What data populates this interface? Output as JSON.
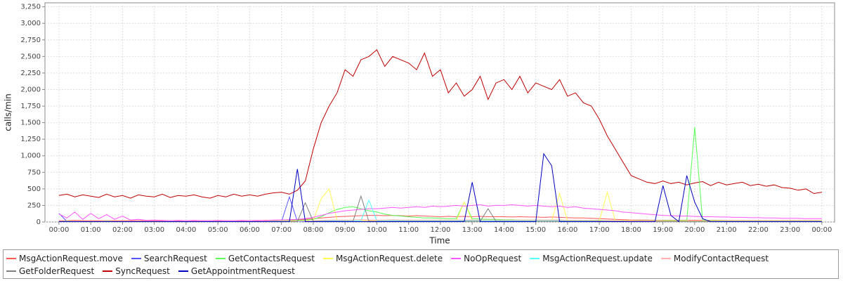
{
  "chart_data": {
    "type": "line",
    "y_label": "calls/min",
    "x_label": "Time",
    "x": [
      0,
      0.25,
      0.5,
      0.75,
      1,
      1.25,
      1.5,
      1.75,
      2,
      2.25,
      2.5,
      2.75,
      3,
      3.25,
      3.5,
      3.75,
      4,
      4.25,
      4.5,
      4.75,
      5,
      5.25,
      5.5,
      5.75,
      6,
      6.25,
      6.5,
      6.75,
      7,
      7.25,
      7.5,
      7.75,
      8,
      8.25,
      8.5,
      8.75,
      9,
      9.25,
      9.5,
      9.75,
      10,
      10.25,
      10.5,
      10.75,
      11,
      11.25,
      11.5,
      11.75,
      12,
      12.25,
      12.5,
      12.75,
      13,
      13.25,
      13.5,
      13.75,
      14,
      14.25,
      14.5,
      14.75,
      15,
      15.25,
      15.5,
      15.75,
      16,
      16.25,
      16.5,
      16.75,
      17,
      17.25,
      17.5,
      17.75,
      18,
      18.25,
      18.5,
      18.75,
      19,
      19.25,
      19.5,
      19.75,
      20,
      20.25,
      20.5,
      20.75,
      21,
      21.25,
      21.5,
      21.75,
      22,
      22.25,
      22.5,
      22.75,
      23,
      23.25,
      23.5,
      23.75,
      24
    ],
    "xlim": [
      -0.44,
      24.4
    ],
    "xticks": [
      {
        "value": 0,
        "label": "00:00"
      },
      {
        "value": 1,
        "label": "01:00"
      },
      {
        "value": 2,
        "label": "02:00"
      },
      {
        "value": 3,
        "label": "03:00"
      },
      {
        "value": 4,
        "label": "04:00"
      },
      {
        "value": 5,
        "label": "05:00"
      },
      {
        "value": 6,
        "label": "06:00"
      },
      {
        "value": 7,
        "label": "07:00"
      },
      {
        "value": 8,
        "label": "08:00"
      },
      {
        "value": 9,
        "label": "09:00"
      },
      {
        "value": 10,
        "label": "10:00"
      },
      {
        "value": 11,
        "label": "11:00"
      },
      {
        "value": 12,
        "label": "12:00"
      },
      {
        "value": 13,
        "label": "13:00"
      },
      {
        "value": 14,
        "label": "14:00"
      },
      {
        "value": 15,
        "label": "15:00"
      },
      {
        "value": 16,
        "label": "16:00"
      },
      {
        "value": 17,
        "label": "17:00"
      },
      {
        "value": 18,
        "label": "18:00"
      },
      {
        "value": 19,
        "label": "19:00"
      },
      {
        "value": 20,
        "label": "20:00"
      },
      {
        "value": 21,
        "label": "21:00"
      },
      {
        "value": 22,
        "label": "22:00"
      },
      {
        "value": 23,
        "label": "23:00"
      },
      {
        "value": 24,
        "label": "00:00"
      }
    ],
    "ylim": [
      0,
      3310
    ],
    "yticks": [
      0,
      250,
      500,
      750,
      {
        "value": 1000,
        "label": "1,000"
      },
      {
        "value": 1250,
        "label": "1,250"
      },
      {
        "value": 1500,
        "label": "1,500"
      },
      {
        "value": 1750,
        "label": "1,750"
      },
      {
        "value": 2000,
        "label": "2,000"
      },
      {
        "value": 2250,
        "label": "2,250"
      },
      {
        "value": 2500,
        "label": "2,500"
      },
      {
        "value": 2750,
        "label": "2,750"
      },
      {
        "value": 3000,
        "label": "3,000"
      },
      {
        "value": 3250,
        "label": "3,250"
      }
    ],
    "grid": true,
    "series": [
      {
        "name": "MsgActionRequest.move",
        "color": "#ff5555",
        "values": [
          20,
          20,
          25,
          20,
          20,
          20,
          20,
          20,
          20,
          20,
          20,
          20,
          20,
          20,
          20,
          20,
          20,
          20,
          20,
          20,
          20,
          20,
          20,
          20,
          20,
          20,
          25,
          25,
          30,
          30,
          35,
          40,
          50,
          60,
          70,
          80,
          85,
          90,
          95,
          100,
          100,
          95,
          100,
          95,
          90,
          95,
          90,
          85,
          80,
          85,
          80,
          85,
          80,
          85,
          80,
          80,
          80,
          75,
          80,
          75,
          75,
          70,
          75,
          70,
          65,
          60,
          60,
          55,
          50,
          45,
          40,
          35,
          30,
          30,
          30,
          25,
          25,
          25,
          25,
          25,
          25,
          25,
          25,
          25,
          20,
          20,
          20,
          20,
          20,
          20,
          20,
          20,
          20,
          20,
          20,
          20,
          20
        ]
      },
      {
        "name": "SearchRequest",
        "color": "#5555ff",
        "values": [
          130,
          10,
          5,
          5,
          5,
          5,
          5,
          5,
          5,
          5,
          5,
          5,
          5,
          5,
          5,
          5,
          5,
          5,
          5,
          5,
          5,
          5,
          5,
          5,
          5,
          5,
          5,
          5,
          5,
          380,
          10,
          5,
          10,
          10,
          15,
          15,
          20,
          20,
          20,
          20,
          20,
          20,
          20,
          20,
          20,
          20,
          20,
          20,
          20,
          20,
          20,
          20,
          20,
          20,
          20,
          20,
          20,
          20,
          20,
          20,
          20,
          20,
          20,
          20,
          15,
          15,
          15,
          15,
          15,
          10,
          10,
          10,
          10,
          10,
          10,
          10,
          10,
          10,
          10,
          10,
          10,
          10,
          10,
          10,
          5,
          5,
          5,
          5,
          5,
          5,
          5,
          5,
          5,
          5,
          5,
          5,
          5
        ]
      },
      {
        "name": "GetContactsRequest",
        "color": "#55ff55",
        "values": [
          10,
          15,
          10,
          10,
          10,
          10,
          15,
          10,
          10,
          10,
          10,
          10,
          10,
          10,
          10,
          10,
          10,
          10,
          10,
          10,
          10,
          10,
          10,
          10,
          10,
          10,
          15,
          15,
          20,
          20,
          25,
          30,
          40,
          80,
          140,
          190,
          220,
          230,
          200,
          170,
          150,
          120,
          100,
          90,
          80,
          70,
          60,
          60,
          55,
          50,
          50,
          300,
          50,
          45,
          40,
          40,
          35,
          35,
          30,
          30,
          30,
          30,
          30,
          30,
          25,
          25,
          25,
          25,
          25,
          20,
          20,
          20,
          20,
          20,
          20,
          20,
          20,
          20,
          20,
          20,
          1430,
          20,
          20,
          20,
          15,
          15,
          15,
          15,
          15,
          15,
          15,
          15,
          15,
          15,
          15,
          15,
          15
        ]
      },
      {
        "name": "MsgActionRequest.delete",
        "color": "#ffff55",
        "values": [
          10,
          10,
          10,
          10,
          10,
          10,
          10,
          10,
          10,
          10,
          10,
          10,
          10,
          10,
          10,
          10,
          10,
          10,
          10,
          10,
          10,
          10,
          10,
          10,
          10,
          10,
          10,
          10,
          15,
          15,
          15,
          20,
          20,
          350,
          500,
          30,
          20,
          20,
          20,
          20,
          20,
          20,
          20,
          20,
          20,
          20,
          20,
          20,
          20,
          20,
          20,
          300,
          20,
          20,
          20,
          20,
          20,
          20,
          20,
          20,
          20,
          20,
          20,
          430,
          20,
          20,
          20,
          20,
          20,
          450,
          20,
          20,
          20,
          15,
          15,
          15,
          15,
          15,
          15,
          15,
          15,
          15,
          15,
          15,
          10,
          10,
          10,
          10,
          10,
          10,
          10,
          10,
          10,
          10,
          10,
          10,
          10
        ]
      },
      {
        "name": "NoOpRequest",
        "color": "#ff55ff",
        "values": [
          120,
          60,
          150,
          40,
          130,
          50,
          110,
          40,
          90,
          30,
          40,
          25,
          30,
          25,
          20,
          25,
          20,
          25,
          20,
          20,
          25,
          20,
          20,
          25,
          20,
          25,
          20,
          30,
          30,
          35,
          40,
          50,
          70,
          100,
          130,
          150,
          170,
          180,
          190,
          200,
          200,
          210,
          220,
          210,
          220,
          230,
          220,
          240,
          230,
          240,
          250,
          240,
          250,
          260,
          240,
          250,
          250,
          260,
          250,
          240,
          250,
          240,
          230,
          240,
          220,
          230,
          210,
          200,
          190,
          180,
          170,
          150,
          140,
          130,
          120,
          110,
          100,
          95,
          90,
          90,
          85,
          80,
          80,
          75,
          75,
          70,
          70,
          65,
          65,
          60,
          60,
          55,
          55,
          55,
          50,
          50,
          50
        ]
      },
      {
        "name": "MsgActionRequest.update",
        "color": "#55ffff",
        "values": [
          10,
          10,
          10,
          10,
          10,
          10,
          10,
          10,
          10,
          10,
          10,
          10,
          10,
          10,
          10,
          10,
          10,
          10,
          10,
          10,
          10,
          10,
          10,
          10,
          10,
          10,
          10,
          10,
          10,
          10,
          10,
          15,
          15,
          20,
          20,
          20,
          20,
          20,
          20,
          330,
          20,
          20,
          20,
          20,
          20,
          20,
          20,
          20,
          20,
          20,
          20,
          20,
          20,
          20,
          20,
          20,
          20,
          20,
          20,
          20,
          20,
          20,
          20,
          20,
          15,
          15,
          15,
          15,
          15,
          15,
          15,
          15,
          10,
          10,
          10,
          10,
          10,
          10,
          10,
          10,
          10,
          10,
          10,
          10,
          10,
          10,
          10,
          10,
          10,
          10,
          10,
          10,
          10,
          10,
          10,
          10,
          10
        ]
      },
      {
        "name": "ModifyContactRequest",
        "color": "#ffafaf",
        "values": [
          10,
          10,
          10,
          10,
          10,
          10,
          10,
          10,
          10,
          10,
          10,
          10,
          10,
          10,
          10,
          10,
          10,
          10,
          10,
          10,
          10,
          10,
          10,
          10,
          10,
          10,
          10,
          10,
          10,
          10,
          15,
          15,
          20,
          25,
          30,
          30,
          30,
          30,
          35,
          30,
          30,
          30,
          35,
          30,
          30,
          30,
          30,
          30,
          30,
          30,
          30,
          30,
          30,
          30,
          30,
          30,
          30,
          30,
          30,
          30,
          30,
          30,
          30,
          30,
          25,
          25,
          25,
          25,
          20,
          20,
          20,
          15,
          15,
          15,
          15,
          15,
          10,
          10,
          10,
          10,
          10,
          10,
          10,
          10,
          10,
          10,
          10,
          10,
          10,
          10,
          10,
          10,
          10,
          10,
          10,
          10,
          10
        ]
      },
      {
        "name": "GetFolderRequest",
        "color": "#808080",
        "values": [
          5,
          5,
          5,
          5,
          5,
          5,
          5,
          5,
          5,
          5,
          5,
          5,
          5,
          5,
          5,
          5,
          5,
          5,
          5,
          5,
          5,
          5,
          5,
          5,
          5,
          5,
          5,
          5,
          5,
          5,
          5,
          290,
          10,
          10,
          10,
          10,
          10,
          10,
          390,
          10,
          10,
          10,
          10,
          10,
          10,
          10,
          10,
          10,
          10,
          10,
          10,
          10,
          10,
          10,
          200,
          10,
          10,
          10,
          10,
          10,
          10,
          10,
          10,
          10,
          10,
          10,
          10,
          10,
          10,
          10,
          10,
          10,
          5,
          5,
          5,
          5,
          5,
          5,
          5,
          5,
          5,
          5,
          5,
          5,
          5,
          5,
          5,
          5,
          5,
          5,
          5,
          5,
          5,
          5,
          5,
          5,
          5
        ]
      },
      {
        "name": "SyncRequest",
        "color": "#c00000",
        "values": [
          400,
          420,
          380,
          410,
          390,
          370,
          420,
          380,
          400,
          360,
          410,
          390,
          380,
          420,
          370,
          400,
          390,
          410,
          380,
          360,
          400,
          380,
          420,
          390,
          410,
          390,
          420,
          440,
          450,
          420,
          480,
          620,
          1100,
          1500,
          1750,
          1950,
          2300,
          2200,
          2450,
          2500,
          2600,
          2350,
          2500,
          2450,
          2400,
          2300,
          2550,
          2200,
          2300,
          1950,
          2100,
          1900,
          2000,
          2200,
          1850,
          2100,
          2150,
          2000,
          2200,
          1950,
          2100,
          2050,
          2000,
          2150,
          1900,
          1950,
          1800,
          1750,
          1550,
          1300,
          1100,
          900,
          700,
          650,
          600,
          580,
          620,
          580,
          600,
          560,
          590,
          610,
          550,
          600,
          560,
          580,
          600,
          550,
          570,
          540,
          560,
          520,
          510,
          480,
          500,
          430,
          450
        ]
      },
      {
        "name": "GetAppointmentRequest",
        "color": "#0000c0",
        "values": [
          5,
          5,
          5,
          5,
          5,
          5,
          5,
          5,
          5,
          5,
          5,
          5,
          5,
          5,
          5,
          5,
          5,
          5,
          5,
          5,
          5,
          5,
          5,
          5,
          5,
          5,
          5,
          5,
          5,
          5,
          800,
          5,
          5,
          5,
          5,
          5,
          5,
          5,
          5,
          5,
          5,
          5,
          5,
          5,
          5,
          5,
          5,
          5,
          5,
          5,
          5,
          5,
          600,
          5,
          5,
          5,
          5,
          5,
          5,
          5,
          5,
          1030,
          850,
          5,
          5,
          5,
          5,
          5,
          5,
          5,
          5,
          5,
          5,
          5,
          5,
          5,
          550,
          100,
          5,
          700,
          300,
          50,
          5,
          5,
          5,
          5,
          5,
          5,
          5,
          5,
          5,
          5,
          5,
          5,
          5,
          5,
          5
        ]
      }
    ]
  }
}
